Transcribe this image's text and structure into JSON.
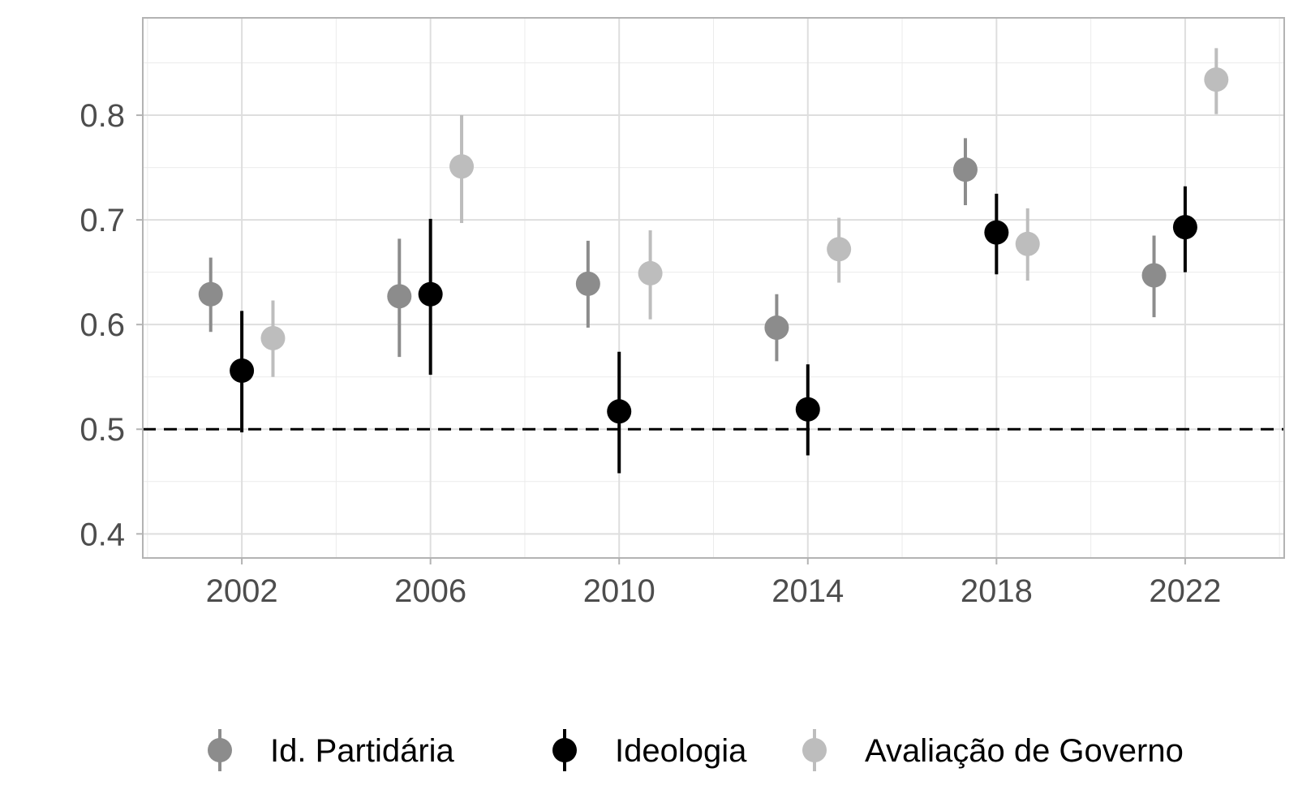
{
  "chart_data": {
    "type": "scatter",
    "subtype": "pointrange",
    "title": "",
    "xlabel": "",
    "ylabel": "",
    "x": [
      2002,
      2006,
      2010,
      2014,
      2018,
      2022
    ],
    "xlim": [
      1999.9,
      2024.1
    ],
    "ylim": [
      0.377,
      0.893
    ],
    "x_ticks": [
      "2002",
      "2006",
      "2010",
      "2014",
      "2018",
      "2022"
    ],
    "y_ticks": [
      "0.4",
      "0.5",
      "0.6",
      "0.7",
      "0.8"
    ],
    "grid": true,
    "theme": "light",
    "reference_line": {
      "y": 0.5,
      "style": "dashed",
      "color": "#000000"
    },
    "legend_position": "bottom",
    "series": [
      {
        "name": "Id. Partidária",
        "color": "#8c8c8c",
        "dodge": -0.66,
        "values": [
          0.629,
          0.627,
          0.639,
          0.597,
          0.748,
          0.647
        ],
        "lower": [
          0.593,
          0.569,
          0.597,
          0.565,
          0.714,
          0.607
        ],
        "upper": [
          0.664,
          0.682,
          0.68,
          0.629,
          0.778,
          0.685
        ]
      },
      {
        "name": "Ideologia",
        "color": "#000000",
        "dodge": 0,
        "values": [
          0.556,
          0.629,
          0.517,
          0.519,
          0.688,
          0.693
        ],
        "lower": [
          0.497,
          0.552,
          0.458,
          0.475,
          0.648,
          0.65
        ],
        "upper": [
          0.613,
          0.701,
          0.574,
          0.562,
          0.725,
          0.732
        ]
      },
      {
        "name": "Avaliação de Governo",
        "color": "#bdbdbd",
        "dodge": 0.66,
        "values": [
          0.587,
          0.751,
          0.649,
          0.672,
          0.677,
          0.834
        ],
        "lower": [
          0.55,
          0.697,
          0.605,
          0.64,
          0.642,
          0.801
        ],
        "upper": [
          0.623,
          0.8,
          0.69,
          0.702,
          0.711,
          0.864
        ]
      }
    ]
  }
}
